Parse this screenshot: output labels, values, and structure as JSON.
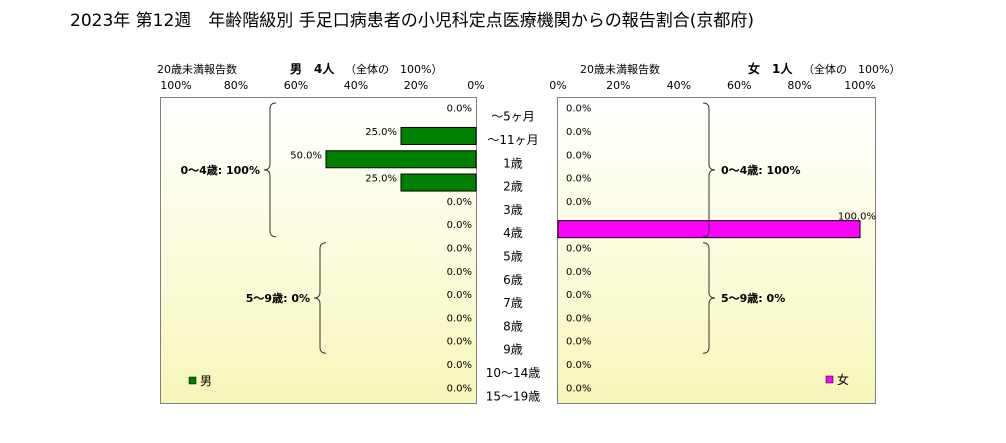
{
  "title": "2023年 第12週　年齢階級別 手足口病患者の小児科定点医療機関からの報告割合(京都府)",
  "chart_data": {
    "type": "bar",
    "orientation": "horizontal-pyramid",
    "categories": [
      "～5ヶ月",
      "～11ヶ月",
      "1歳",
      "2歳",
      "3歳",
      "4歳",
      "5歳",
      "6歳",
      "7歳",
      "8歳",
      "9歳",
      "10～14歳",
      "15～19歳"
    ],
    "xlim": [
      0,
      100
    ],
    "ticks": [
      "0%",
      "20%",
      "40%",
      "60%",
      "80%",
      "100%"
    ],
    "grid": false,
    "male": {
      "header_label": "20歳未満報告数",
      "header": "男　4人",
      "header_total": "（全体の　100%）",
      "legend": "男",
      "legend_position": "bottom-left",
      "color": "#008000",
      "values": [
        0,
        25,
        50,
        25,
        0,
        0,
        0,
        0,
        0,
        0,
        0,
        0,
        0
      ],
      "value_labels": [
        "0.0%",
        "25.0%",
        "50.0%",
        "25.0%",
        "0.0%",
        "0.0%",
        "0.0%",
        "0.0%",
        "0.0%",
        "0.0%",
        "0.0%",
        "0.0%",
        "0.0%"
      ],
      "groups": [
        {
          "label": "0～4歳: 100%",
          "from": 0,
          "to": 5
        },
        {
          "label": "5～9歳: 0%",
          "from": 6,
          "to": 10
        }
      ]
    },
    "female": {
      "header_label": "20歳未満報告数",
      "header": "女　1人",
      "header_total": "（全体の　100%）",
      "legend": "女",
      "legend_position": "bottom-right",
      "color": "#ff00ff",
      "values": [
        0,
        0,
        0,
        0,
        0,
        100,
        0,
        0,
        0,
        0,
        0,
        0,
        0
      ],
      "value_labels": [
        "0.0%",
        "0.0%",
        "0.0%",
        "0.0%",
        "0.0%",
        "100.0%",
        "0.0%",
        "0.0%",
        "0.0%",
        "0.0%",
        "0.0%",
        "0.0%",
        "0.0%"
      ],
      "groups": [
        {
          "label": "0～4歳: 100%",
          "from": 0,
          "to": 5
        },
        {
          "label": "5～9歳: 0%",
          "from": 6,
          "to": 10
        }
      ]
    }
  }
}
